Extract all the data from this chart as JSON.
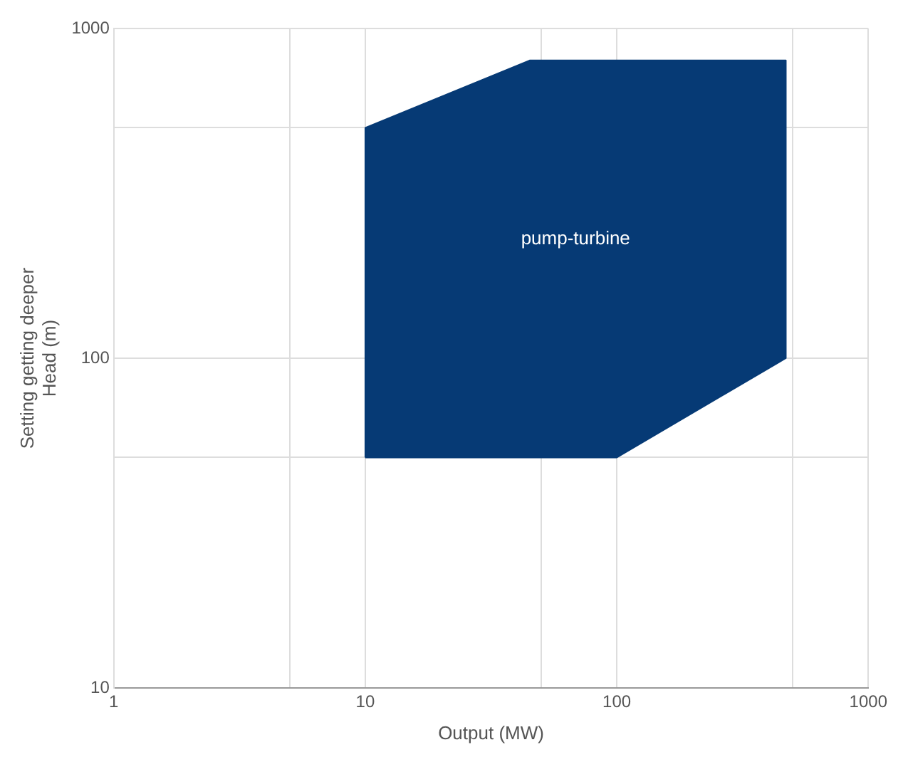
{
  "chart_data": {
    "type": "area",
    "xlabel": "Output (MW)",
    "ylabel": "Setting getting deeper\nHead (m)",
    "log": "xy",
    "grid": true,
    "xlim": [
      1,
      1000
    ],
    "xticks": [
      1,
      {
        "value": 5,
        "label": null
      },
      10,
      {
        "value": 50,
        "label": null
      },
      100,
      {
        "value": 500,
        "label": null
      },
      1000
    ],
    "ylim": [
      10,
      1000
    ],
    "yticks": [
      10,
      {
        "value": 50,
        "label": null
      },
      100,
      {
        "value": 500,
        "label": null
      },
      1000
    ],
    "series": [
      {
        "color": "#063a75",
        "x": [
          10,
          10,
          45,
          470,
          470,
          100,
          10
        ],
        "values": [
          50,
          500,
          800,
          800,
          100,
          50,
          50
        ]
      }
    ],
    "annotations": [
      "pump-turbine"
    ]
  }
}
